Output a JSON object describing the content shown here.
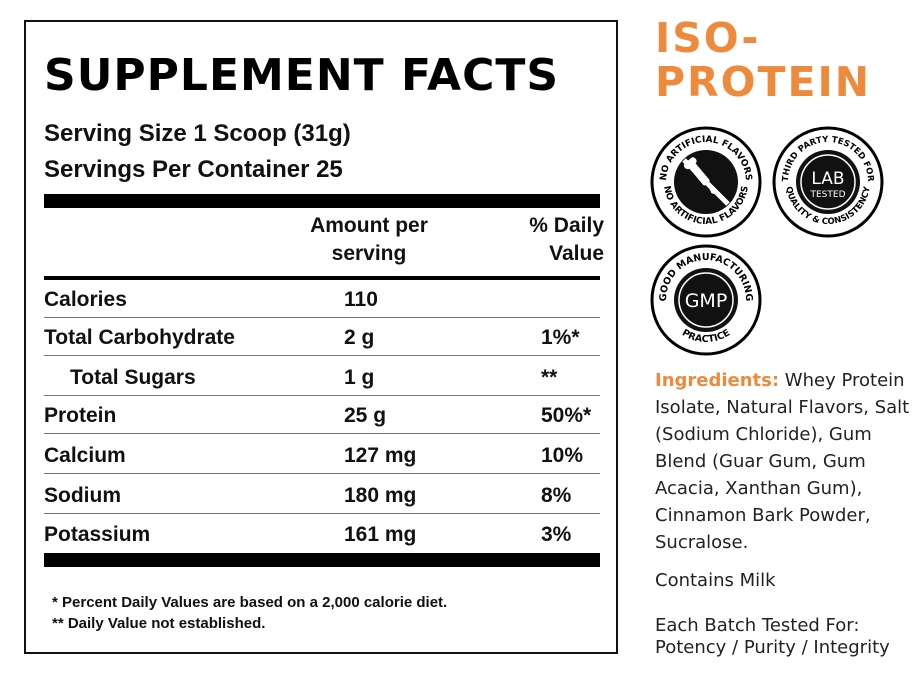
{
  "label": {
    "title": "SUPPLEMENT FACTS",
    "serving_size": "Serving Size 1 Scoop (31g)",
    "servings_per_container": "Servings Per Container 25",
    "col_amount_line1": "Amount per",
    "col_amount_line2": "serving",
    "col_daily_line1": "% Daily",
    "col_daily_line2": "Value",
    "rows": [
      {
        "name": "Calories",
        "amount": "110",
        "daily": ""
      },
      {
        "name": "Total Carbohydrate",
        "amount": "2 g",
        "daily": "1%*"
      },
      {
        "name": "Total Sugars",
        "amount": "1 g",
        "daily": "**"
      },
      {
        "name": "Protein",
        "amount": "25 g",
        "daily": "50%*"
      },
      {
        "name": "Calcium",
        "amount": "127 mg",
        "daily": "10%"
      },
      {
        "name": "Sodium",
        "amount": "180 mg",
        "daily": "8%"
      },
      {
        "name": "Potassium",
        "amount": "161 mg",
        "daily": "3%"
      }
    ],
    "footnote1": "* Percent Daily Values are based on a 2,000 calorie diet.",
    "footnote2": "** Daily Value not established."
  },
  "brand": {
    "line1": "ISO-",
    "line2": "PROTEIN",
    "accent_color": "#ee8a3c"
  },
  "badges": {
    "no_artificial_flavors": {
      "icon": "dropper-icon",
      "ring_text": "NO ARTIFICIAL FLAVORS"
    },
    "lab_tested": {
      "line1": "LAB",
      "line2": "TESTED",
      "ring_text_top": "THIRD PARTY TESTED FOR",
      "ring_text_bottom": "QUALITY & CONSISTENCY"
    },
    "gmp": {
      "center": "GMP",
      "ring_text_top": "GOOD MANUFACTURING",
      "ring_text_bottom": "PRACTICE"
    }
  },
  "ingredients": {
    "label": "Ingredients:",
    "text": " Whey Protein Isolate, Natural Flavors, Salt (Sodium Chloride), Gum Blend (Guar Gum, Gum Acacia, Xanthan Gum), Cinnamon Bark Powder, Sucralose."
  },
  "allergen": "Contains Milk",
  "batch": {
    "line1": "Each Batch Tested For:",
    "line2": "Potency / Purity / Integrity"
  }
}
